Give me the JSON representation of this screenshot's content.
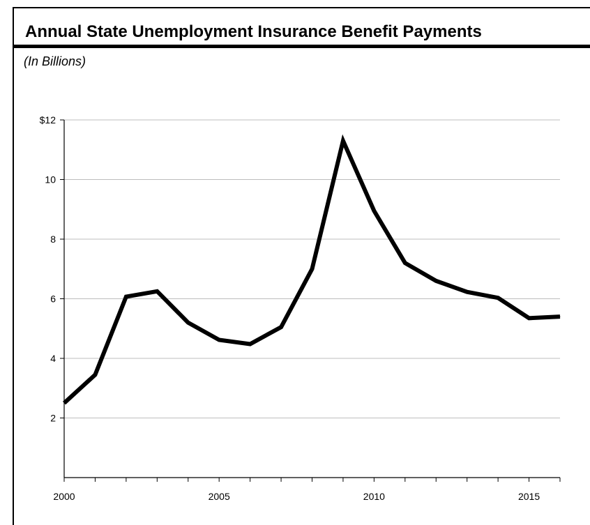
{
  "chart_data": {
    "type": "line",
    "title": "Annual State Unemployment Insurance Benefit Payments",
    "subtitle": "(In Billions)",
    "xlabel": "",
    "ylabel": "",
    "x": [
      2000,
      2001,
      2002,
      2003,
      2004,
      2005,
      2006,
      2007,
      2008,
      2009,
      2010,
      2011,
      2012,
      2013,
      2014,
      2015,
      2016
    ],
    "series": [
      {
        "values": [
          2.5,
          3.45,
          6.07,
          6.25,
          5.2,
          4.62,
          4.48,
          5.05,
          7.0,
          11.3,
          8.95,
          7.2,
          6.6,
          6.23,
          6.03,
          5.35,
          5.4
        ],
        "color": "#000000"
      }
    ],
    "xlim": [
      2000,
      2016
    ],
    "ylim": [
      0,
      12
    ],
    "yticks": [
      2,
      4,
      6,
      8,
      10,
      12
    ],
    "ytick_labels": [
      "2",
      "4",
      "6",
      "8",
      "10",
      "$12"
    ],
    "xticks": [
      2000,
      2005,
      2010,
      2015
    ],
    "xtick_labels": [
      "2000",
      "2005",
      "2010",
      "2015"
    ],
    "grid": true
  }
}
